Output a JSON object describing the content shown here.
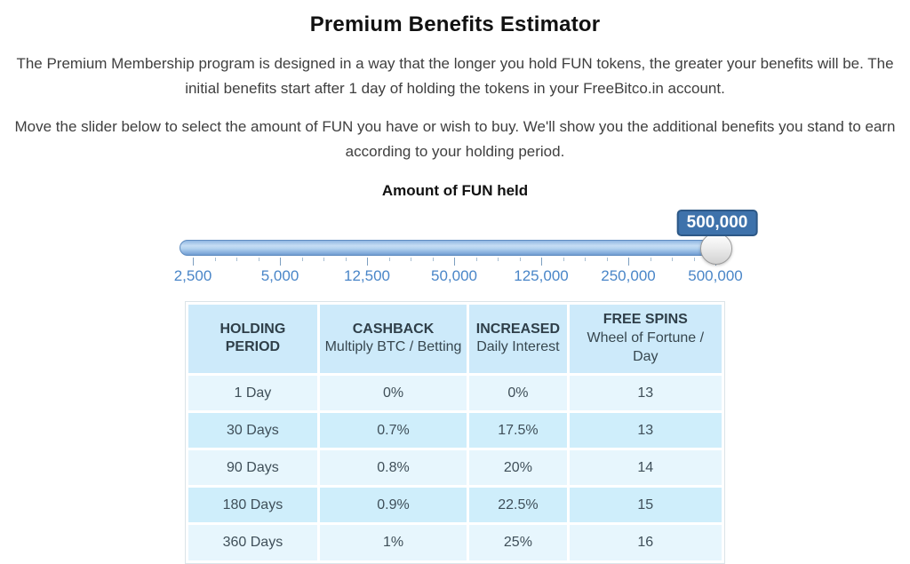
{
  "title": "Premium Benefits Estimator",
  "paragraphs": [
    "The Premium Membership program is designed in a way that the longer you hold FUN tokens, the greater your benefits will be. The initial benefits start after 1 day of holding the tokens in your FreeBitco.in account.",
    "Move the slider below to select the amount of FUN you have or wish to buy. We'll show you the additional benefits you stand to earn according to your holding period."
  ],
  "slider": {
    "heading": "Amount of FUN held",
    "current_value": "500,000",
    "tick_labels": [
      "2,500",
      "5,000",
      "12,500",
      "50,000",
      "125,000",
      "250,000",
      "500,000"
    ],
    "minor_ticks_between": 3,
    "tooltip_bg": "#3e72ab",
    "tooltip_border": "#2d5886",
    "track_border": "#5f8cc0",
    "label_color": "#4a86c8"
  },
  "table": {
    "columns": [
      {
        "title": "HOLDING PERIOD",
        "subtitle": ""
      },
      {
        "title": "CASHBACK",
        "subtitle": "Multiply BTC / Betting"
      },
      {
        "title": "INCREASED",
        "subtitle": "Daily Interest"
      },
      {
        "title": "FREE SPINS",
        "subtitle": "Wheel of Fortune / Day"
      }
    ],
    "rows": [
      [
        "1 Day",
        "0%",
        "0%",
        "13"
      ],
      [
        "30 Days",
        "0.7%",
        "17.5%",
        "13"
      ],
      [
        "90 Days",
        "0.8%",
        "20%",
        "14"
      ],
      [
        "180 Days",
        "0.9%",
        "22.5%",
        "15"
      ],
      [
        "360 Days",
        "1%",
        "25%",
        "16"
      ]
    ],
    "header_bg": "#cdeafa",
    "row_light_bg": "#e7f6fd",
    "row_dark_bg": "#cfeefb"
  }
}
